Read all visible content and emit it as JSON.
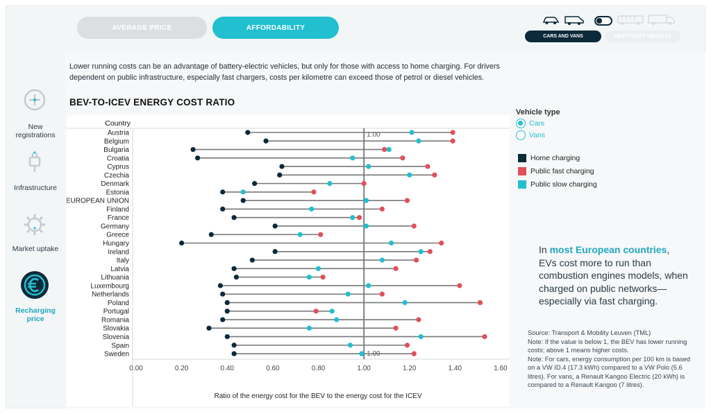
{
  "tabs": {
    "average_price": "AVERAGE PRICE",
    "affordability": "AFFORDABILITY"
  },
  "vehicle_selector": {
    "cars_and_vans": "CARS AND VANS",
    "heavy_duty": "HEAVY-DUTY VEHICLES"
  },
  "nav": [
    {
      "label_line1": "New",
      "label_line2": "registrations",
      "icon": "plus-circle-icon"
    },
    {
      "label_line1": "Infrastructure",
      "label_line2": "",
      "icon": "plug-icon"
    },
    {
      "label_line1": "Market uptake",
      "label_line2": "",
      "icon": "gear-icon"
    },
    {
      "label_line1": "Recharging",
      "label_line2": "price",
      "icon": "euro-icon"
    }
  ],
  "intro": "Lower running costs can be an advantage of battery-electric vehicles, but only for those with access to home charging. For drivers dependent on public infrastructure, especially fast chargers, costs per kilometre can exceed those of petrol or diesel vehicles.",
  "legend": {
    "vehicle_type_title": "Vehicle type",
    "options": [
      "Cars",
      "Vans"
    ],
    "selected": "Cars",
    "series_labels": [
      "Home charging",
      "Public fast charging",
      "Public slow charging"
    ]
  },
  "callout": {
    "pre": "In ",
    "highlight": "most European countries",
    "post": ", EVs cost more to run than combustion engines models, when charged on public networks—especially via fast charging."
  },
  "source": {
    "line1": "Source: Transport & Mobility Leuven (TML)",
    "line2": "Note: If the value is below 1, the BEV has lower running costs; above 1 means higher costs.",
    "line3": "Note: For cars, energy consumption per 100 km is based on a VW ID.4 (17.3 kWh) compared to a VW Polo (5.6 litres). For vans, a Renault Kangoo Electric (20 kWh) is compared to a Renault Kangoo (7 litres)."
  },
  "chart_data": {
    "type": "dumbbell",
    "title": "BEV-TO-ICEV ENERGY COST RATIO",
    "category_header": "Country",
    "xlabel": "Ratio of the energy cost for the BEV to the energy cost for the ICEV",
    "xlim": [
      0,
      1.6
    ],
    "xticks": [
      0,
      0.2,
      0.4,
      0.6,
      0.8,
      1.0,
      1.2,
      1.4,
      1.6
    ],
    "xtick_labels": [
      "0.00",
      "0.20",
      "0.40",
      "0.60",
      "0.80",
      "1.00",
      "1.20",
      "1.40",
      "1.60"
    ],
    "reference_line": 1.0,
    "reference_labels": [
      "1.00",
      "1.00"
    ],
    "colors": {
      "home": "#0b2a3a",
      "fast": "#e0505a",
      "slow": "#22bfd0"
    },
    "categories": [
      "Austria",
      "Belgium",
      "Bulgaria",
      "Croatia",
      "Cyprus",
      "Czechia",
      "Denmark",
      "Estonia",
      "EUROPEAN UNION",
      "Finland",
      "France",
      "Germany",
      "Greece",
      "Hungary",
      "Ireland",
      "Italy",
      "Latvia",
      "Lithuania",
      "Luxembourg",
      "Netherlands",
      "Poland",
      "Portugal",
      "Romania",
      "Slovakia",
      "Slovenia",
      "Spain",
      "Sweden"
    ],
    "series": [
      {
        "name": "Home charging",
        "values": [
          0.49,
          0.57,
          0.25,
          0.27,
          0.64,
          0.63,
          0.52,
          0.38,
          0.47,
          0.38,
          0.43,
          0.61,
          0.33,
          0.2,
          0.61,
          0.51,
          0.43,
          0.44,
          0.37,
          0.38,
          0.4,
          0.4,
          0.38,
          0.32,
          0.4,
          0.43,
          0.43
        ]
      },
      {
        "name": "Public fast charging",
        "values": [
          1.39,
          1.39,
          1.09,
          1.17,
          1.28,
          1.31,
          1.0,
          0.78,
          1.19,
          1.08,
          0.98,
          1.22,
          0.81,
          1.34,
          1.29,
          1.23,
          1.14,
          0.82,
          1.42,
          1.08,
          1.51,
          0.79,
          1.24,
          1.14,
          1.53,
          1.19,
          1.22
        ]
      },
      {
        "name": "Public slow charging",
        "values": [
          1.21,
          1.24,
          1.11,
          0.95,
          1.02,
          1.2,
          0.85,
          0.47,
          1.01,
          0.77,
          0.95,
          1.01,
          0.72,
          1.12,
          1.25,
          1.08,
          0.8,
          0.76,
          1.02,
          0.93,
          1.18,
          0.86,
          0.88,
          0.76,
          1.25,
          0.94,
          0.99
        ]
      }
    ]
  }
}
